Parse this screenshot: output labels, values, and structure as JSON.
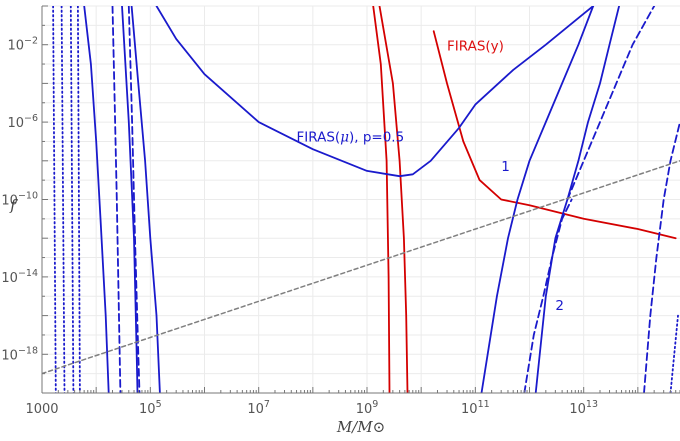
{
  "chart_data": {
    "type": "line",
    "xlabel": "M/M⊙",
    "ylabel": "f",
    "xscale": "log",
    "yscale": "log",
    "xlim": [
      1000,
      600000000000000
    ],
    "ylim": [
      1e-20,
      1
    ],
    "grid": true,
    "x_ticks": [
      {
        "value": 1000,
        "base": "1000",
        "exp": ""
      },
      {
        "value": 100000,
        "base": "10",
        "exp": "5"
      },
      {
        "value": 10000000,
        "base": "10",
        "exp": "7"
      },
      {
        "value": 1000000000,
        "base": "10",
        "exp": "9"
      },
      {
        "value": 100000000000,
        "base": "10",
        "exp": "11"
      },
      {
        "value": 10000000000000,
        "base": "10",
        "exp": "13"
      }
    ],
    "y_ticks": [
      {
        "value": 0.01,
        "base": "10",
        "exp": "−2"
      },
      {
        "value": 1e-06,
        "base": "10",
        "exp": "−6"
      },
      {
        "value": 1e-10,
        "base": "10",
        "exp": "−10"
      },
      {
        "value": 1e-14,
        "base": "10",
        "exp": "−14"
      },
      {
        "value": 1e-18,
        "base": "10",
        "exp": "−18"
      }
    ],
    "annotations": [
      {
        "text": "FIRAS(y)",
        "x": 30000000000.0,
        "y": 0.005,
        "color": "#dd1111"
      },
      {
        "text_before": "FIRAS(",
        "text_symbol": "μ",
        "text_after": "), p=0.5",
        "x": 50000000.0,
        "y": 1e-07,
        "color": "#1a1acc"
      },
      {
        "text": "1",
        "x": 300000000000.0,
        "y": 3e-09,
        "color": "#1a1acc"
      },
      {
        "text": "2",
        "x": 3000000000000.0,
        "y": 2e-16,
        "color": "#1a1acc"
      }
    ],
    "series": [
      {
        "color": "#d40000",
        "style": "solid",
        "points": [
          [
            1300000000.0,
            1
          ],
          [
            1800000000.0,
            0.001
          ],
          [
            2300000000.0,
            1e-08
          ],
          [
            2500000000.0,
            1e-14
          ],
          [
            2600000000.0,
            1e-20
          ]
        ]
      },
      {
        "color": "#d40000",
        "style": "solid",
        "points": [
          [
            1700000000.0,
            1
          ],
          [
            3000000000.0,
            0.0001
          ],
          [
            4000000000.0,
            1e-08
          ],
          [
            4800000000.0,
            1e-12
          ],
          [
            5300000000.0,
            1e-16
          ],
          [
            5600000000.0,
            1e-20
          ]
        ]
      },
      {
        "color": "#d40000",
        "style": "solid",
        "points": [
          [
            17000000000.0,
            0.05
          ],
          [
            30000000000.0,
            0.0001
          ],
          [
            60000000000.0,
            1e-07
          ],
          [
            120000000000.0,
            1e-09
          ],
          [
            300000000000.0,
            1e-10
          ],
          [
            1000000000000.0,
            5e-11
          ],
          [
            10000000000000.0,
            1e-11
          ],
          [
            100000000000000.0,
            3e-12
          ],
          [
            500000000000000.0,
            1e-12
          ]
        ]
      },
      {
        "color": "#1a1acc",
        "style": "solid",
        "points": [
          [
            130000.0,
            1
          ],
          [
            300000.0,
            0.02
          ],
          [
            1000000.0,
            0.0003
          ],
          [
            10000000.0,
            1e-06
          ],
          [
            100000000.0,
            4e-08
          ],
          [
            1000000000.0,
            3e-09
          ],
          [
            4000000000.0,
            1.6e-09
          ],
          [
            7000000000.0,
            2e-09
          ],
          [
            15000000000.0,
            1e-08
          ],
          [
            50000000000.0,
            5e-07
          ],
          [
            100000000000.0,
            8e-06
          ],
          [
            500000000000.0,
            0.0005
          ],
          [
            2000000000000.0,
            0.01
          ],
          [
            10000000000000.0,
            0.4
          ],
          [
            15000000000000.0,
            1
          ]
        ]
      },
      {
        "color": "#1a1acc",
        "style": "solid",
        "points": [
          [
            6000.0,
            1
          ],
          [
            8000.0,
            0.001
          ],
          [
            10000.0,
            1e-07
          ],
          [
            12000.0,
            1e-11
          ],
          [
            15000.0,
            1e-16
          ],
          [
            17000.0,
            1e-20
          ]
        ]
      },
      {
        "color": "#1a1acc",
        "style": "solid",
        "points": [
          [
            30000.0,
            1
          ],
          [
            40000.0,
            1e-06
          ],
          [
            50000.0,
            1e-12
          ],
          [
            56000.0,
            1e-18
          ],
          [
            58000.0,
            1e-20
          ]
        ]
      },
      {
        "color": "#1a1acc",
        "style": "solid",
        "points": [
          [
            150000.0,
            1e-20
          ],
          [
            130000.0,
            1e-16
          ],
          [
            100000.0,
            1e-12
          ],
          [
            80000.0,
            1e-08
          ],
          [
            60000.0,
            0.0001
          ],
          [
            45000.0,
            1
          ]
        ]
      },
      {
        "color": "#1a1acc",
        "style": "solid",
        "points": [
          [
            130000000000.0,
            1e-20
          ],
          [
            250000000000.0,
            1e-15
          ],
          [
            400000000000.0,
            1e-12
          ],
          [
            600000000000.0,
            1e-10
          ],
          [
            1000000000000.0,
            1e-08
          ],
          [
            2000000000000.0,
            1e-06
          ],
          [
            4000000000000.0,
            0.0001
          ],
          [
            8000000000000.0,
            0.01
          ],
          [
            15000000000000.0,
            1
          ]
        ]
      },
      {
        "color": "#1a1acc",
        "style": "solid",
        "points": [
          [
            1300000000000.0,
            1e-20
          ],
          [
            2000000000000.0,
            1e-15
          ],
          [
            3000000000000.0,
            1e-12
          ],
          [
            5000000000000.0,
            1e-10
          ],
          [
            8000000000000.0,
            1e-08
          ],
          [
            12000000000000.0,
            1e-06
          ],
          [
            20000000000000.0,
            0.0001
          ],
          [
            30000000000000.0,
            0.01
          ],
          [
            45000000000000.0,
            1
          ]
        ]
      },
      {
        "color": "#1a1acc",
        "style": "dashed",
        "points": [
          [
            20000.0,
            1
          ],
          [
            22000.0,
            1e-05
          ],
          [
            24000.0,
            1e-10
          ],
          [
            26000.0,
            1e-15
          ],
          [
            28000.0,
            1e-20
          ]
        ]
      },
      {
        "color": "#1a1acc",
        "style": "dashed",
        "points": [
          [
            40000.0,
            1
          ],
          [
            46000.0,
            1e-06
          ],
          [
            52000.0,
            1e-12
          ],
          [
            60000.0,
            1e-18
          ],
          [
            63000.0,
            1e-20
          ]
        ]
      },
      {
        "color": "#1a1acc",
        "style": "dashed",
        "points": [
          [
            5000000000000.0,
            1e-10
          ],
          [
            10000000000000.0,
            1e-08
          ],
          [
            20000000000000.0,
            1e-06
          ],
          [
            40000000000000.0,
            0.0001
          ],
          [
            80000000000000.0,
            0.01
          ],
          [
            200000000000000.0,
            1
          ]
        ]
      },
      {
        "color": "#1a1acc",
        "style": "dashed",
        "points": [
          [
            800000000000.0,
            1e-20
          ],
          [
            1200000000000.0,
            1e-17
          ],
          [
            1800000000000.0,
            1e-15
          ],
          [
            2600000000000.0,
            1e-13
          ],
          [
            4000000000000.0,
            1e-11
          ],
          [
            6000000000000.0,
            1e-10
          ]
        ]
      },
      {
        "color": "#1a1acc",
        "style": "dashed",
        "points": [
          [
            130000000000000.0,
            1e-20
          ],
          [
            170000000000000.0,
            1e-16
          ],
          [
            220000000000000.0,
            1e-13
          ],
          [
            300000000000000.0,
            1e-10
          ],
          [
            400000000000000.0,
            1e-08
          ],
          [
            600000000000000.0,
            1e-06
          ]
        ]
      },
      {
        "color": "#1a1acc",
        "style": "dotted",
        "points": [
          [
            1600,
            1
          ],
          [
            1800,
            1e-20
          ]
        ]
      },
      {
        "color": "#1a1acc",
        "style": "dotted",
        "points": [
          [
            2300,
            1
          ],
          [
            2600,
            1e-20
          ]
        ]
      },
      {
        "color": "#1a1acc",
        "style": "dotted",
        "points": [
          [
            3400,
            1
          ],
          [
            3800,
            1e-20
          ]
        ]
      },
      {
        "color": "#1a1acc",
        "style": "dotted",
        "points": [
          [
            4600,
            1
          ],
          [
            5000,
            1e-20
          ]
        ]
      },
      {
        "color": "#1a1acc",
        "style": "dotted",
        "points": [
          [
            400000000000000.0,
            1e-20
          ],
          [
            550000000000000.0,
            1e-16
          ]
        ]
      },
      {
        "color": "#808080",
        "style": "dashed",
        "points": [
          [
            1000,
            1e-19
          ],
          [
            600000000000000,
            1e-08
          ]
        ]
      }
    ]
  }
}
